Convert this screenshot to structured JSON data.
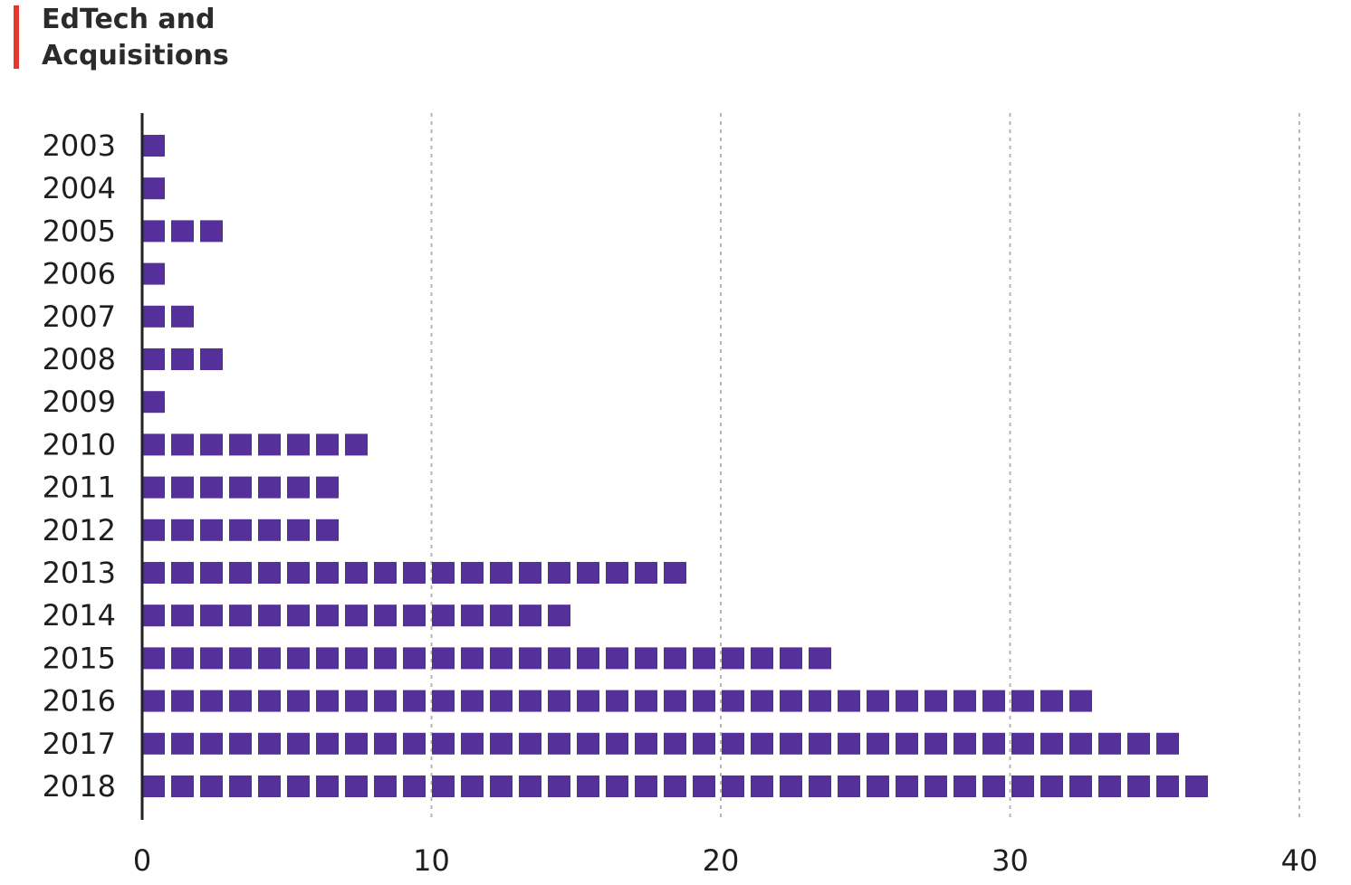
{
  "colors": {
    "accent": "#e4382b",
    "bar": "#55309b",
    "axis": "#222222",
    "grid": "#b5b5b5"
  },
  "chart_data": {
    "type": "bar",
    "orientation": "horizontal",
    "style": "unit-squares",
    "title": "EdTech and\nAcquisitions",
    "categories": [
      "2003",
      "2004",
      "2005",
      "2006",
      "2007",
      "2008",
      "2009",
      "2010",
      "2011",
      "2012",
      "2013",
      "2014",
      "2015",
      "2016",
      "2017",
      "2018"
    ],
    "values": [
      1,
      1,
      3,
      1,
      2,
      3,
      1,
      8,
      7,
      7,
      19,
      15,
      24,
      33,
      36,
      37
    ],
    "xlabel": "",
    "ylabel": "",
    "xlim": [
      0,
      40
    ],
    "xticks": [
      "0",
      "10",
      "20",
      "30",
      "40"
    ],
    "grid": "vertical dashed",
    "legend": "none"
  }
}
